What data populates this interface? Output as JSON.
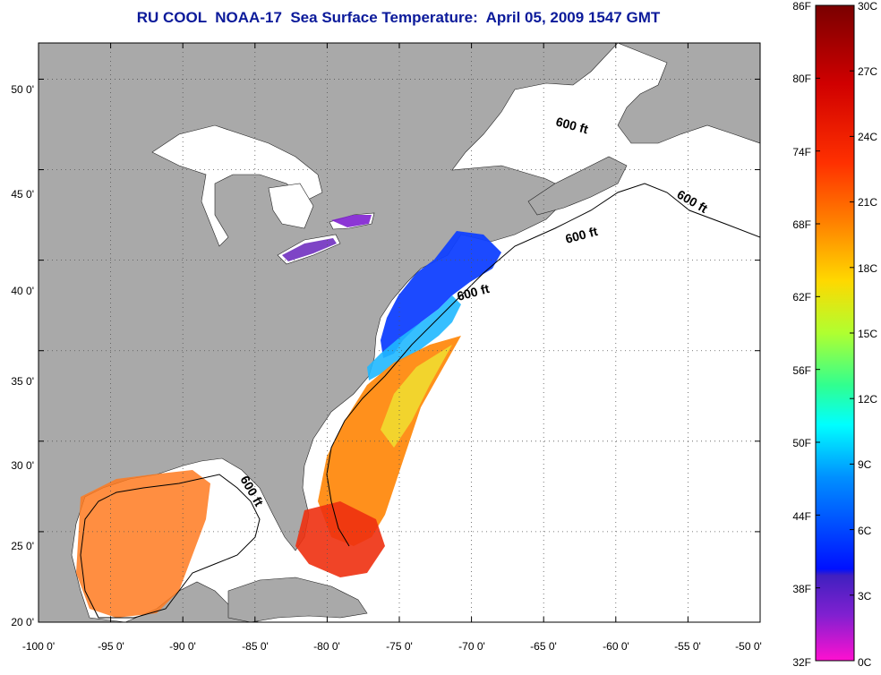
{
  "title": "RU COOL  NOAA-17  Sea Surface Temperature:  April 05, 2009 1547 GMT",
  "map": {
    "x_ticks": [
      "-100 0'",
      "-95 0'",
      "-90 0'",
      "-85 0'",
      "-80 0'",
      "-75 0'",
      "-70 0'",
      "-65 0'",
      "-60 0'",
      "-55 0'",
      "-50 0'"
    ],
    "y_ticks": [
      "50 0'",
      "45 0'",
      "40 0'",
      "35 0'",
      "30 0'",
      "25 0'",
      "20 0'"
    ],
    "lon_range": [
      -100,
      -50
    ],
    "lat_range": [
      20,
      52
    ],
    "depth_labels": [
      "600 ft",
      "600 ft",
      "600 ft",
      "600 ft",
      "600 ft"
    ],
    "land_color": "#a9a9a9",
    "grid": "dotted"
  },
  "colorbar": {
    "fahrenheit": [
      "86F",
      "80F",
      "74F",
      "68F",
      "62F",
      "56F",
      "50F",
      "44F",
      "38F",
      "32F"
    ],
    "celsius": [
      "30C",
      "27C",
      "24C",
      "21C",
      "18C",
      "15C",
      "12C",
      "9C",
      "6C",
      "3C",
      "0C"
    ],
    "colors": [
      "#7a0000",
      "#d00000",
      "#ff2a00",
      "#ff7a00",
      "#ffd000",
      "#b8ff20",
      "#30ff80",
      "#00ffff",
      "#0090ff",
      "#0010ff",
      "#7a10d0",
      "#ff10d0"
    ]
  }
}
